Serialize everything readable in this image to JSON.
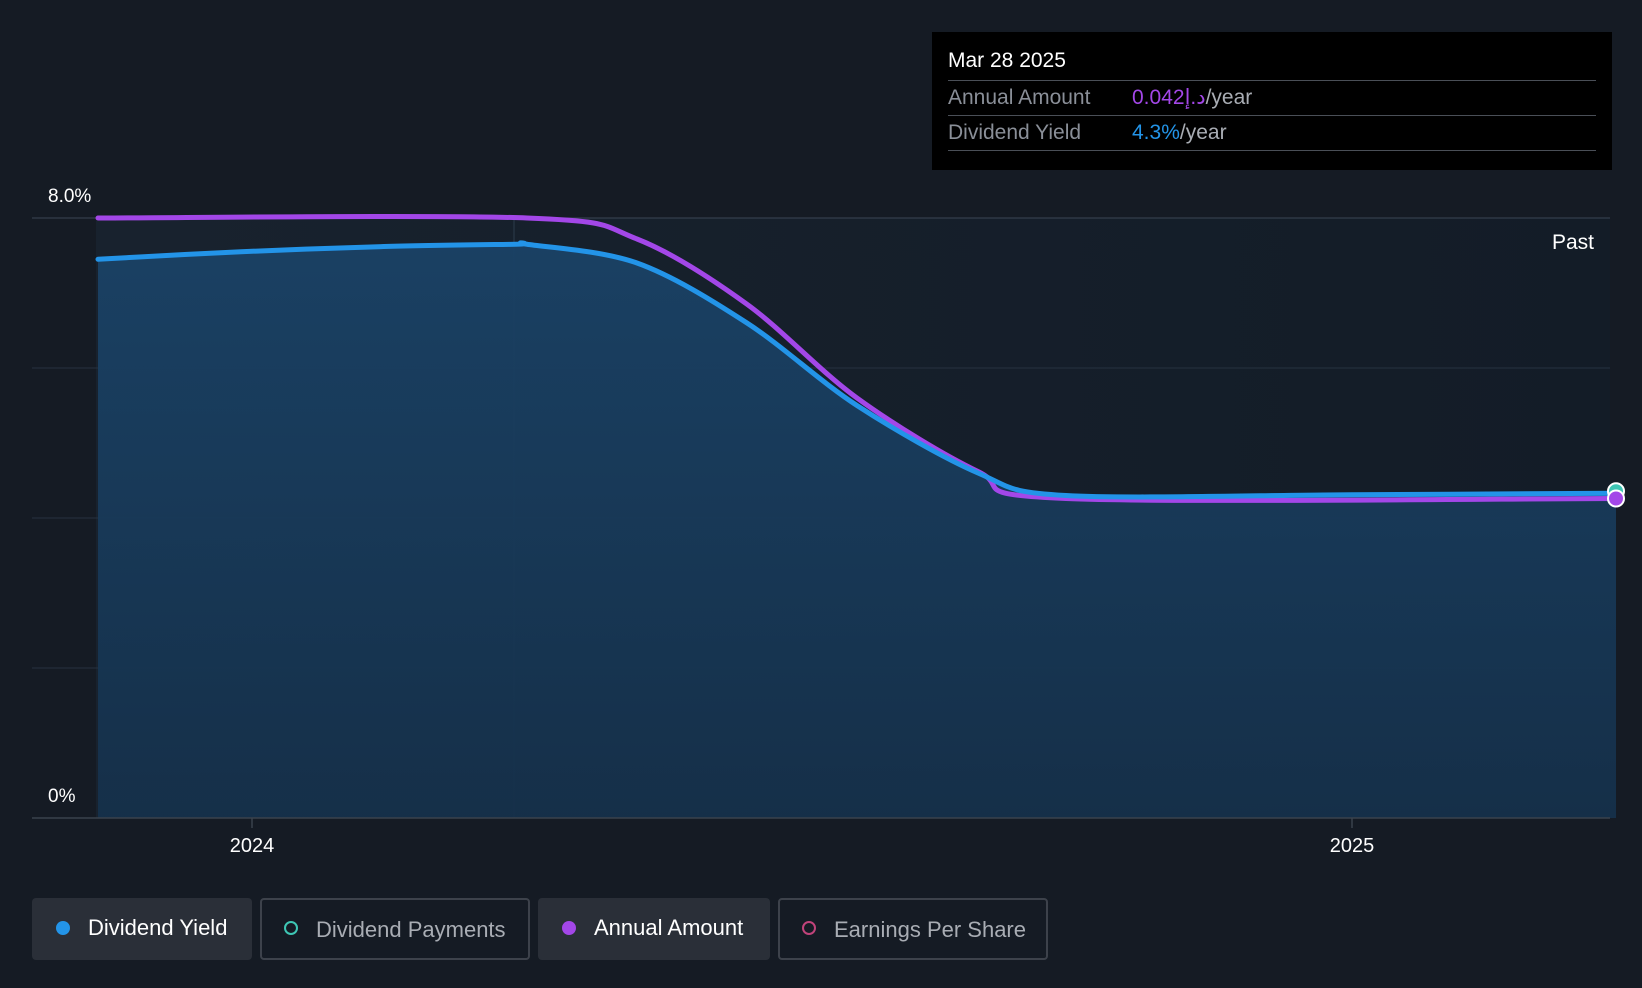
{
  "chart_data": {
    "type": "area",
    "title": "",
    "xlabel": "",
    "ylabel": "",
    "ylim": [
      0,
      8.0
    ],
    "y_tick_labels": [
      "8.0%",
      "0%"
    ],
    "x_tick_labels": [
      "2024",
      "2025"
    ],
    "region_label": "Past",
    "series": [
      {
        "name": "Dividend Yield",
        "color": "#2394e8",
        "fill": true,
        "points": [
          [
            2023.86,
            7.45
          ],
          [
            2023.99,
            7.55
          ],
          [
            2024.12,
            7.62
          ],
          [
            2024.24,
            7.65
          ],
          [
            2024.25,
            7.65
          ],
          [
            2024.35,
            7.4
          ],
          [
            2024.45,
            6.6
          ],
          [
            2024.55,
            5.5
          ],
          [
            2024.66,
            4.6
          ],
          [
            2024.74,
            4.3
          ],
          [
            2025.0,
            4.31
          ],
          [
            2025.24,
            4.33
          ]
        ]
      },
      {
        "name": "Annual Amount",
        "color": "#a347e8",
        "fill": false,
        "points": [
          [
            2023.86,
            8.0
          ],
          [
            2024.25,
            8.0
          ],
          [
            2024.35,
            7.72
          ],
          [
            2024.45,
            6.85
          ],
          [
            2024.55,
            5.6
          ],
          [
            2024.66,
            4.62
          ],
          [
            2024.74,
            4.26
          ],
          [
            2025.24,
            4.26
          ]
        ]
      }
    ],
    "tooltip": {
      "date": "Mar 28 2025",
      "rows": [
        {
          "label": "Annual Amount",
          "value": "0.042د.إ",
          "unit": "/year",
          "color": "#a347e8"
        },
        {
          "label": "Dividend Yield",
          "value": "4.3%",
          "unit": "/year",
          "color": "#2394e8"
        }
      ]
    },
    "legend": [
      {
        "label": "Dividend Yield",
        "color": "#2394e8",
        "active": true
      },
      {
        "label": "Dividend Payments",
        "color": "#3ec6b4",
        "active": false
      },
      {
        "label": "Annual Amount",
        "color": "#a347e8",
        "active": true
      },
      {
        "label": "Earnings Per Share",
        "color": "#c0437a",
        "active": false
      }
    ]
  }
}
